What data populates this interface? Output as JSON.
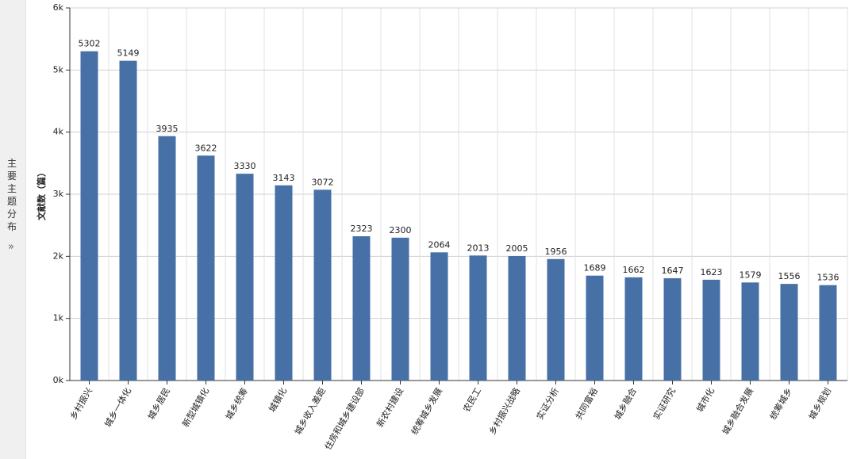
{
  "sidebar": {
    "title": "主要主题分布",
    "toggle": "»"
  },
  "chart_data": {
    "type": "bar",
    "y_label": "文献数（篇）",
    "categories": [
      "乡村振兴",
      "城乡一体化",
      "城乡居民",
      "新型城镇化",
      "城乡统筹",
      "城镇化",
      "城乡收入差距",
      "住房和城乡建设部",
      "新农村建设",
      "统筹城乡发展",
      "农民工",
      "乡村振兴战略",
      "实证分析",
      "共同富裕",
      "城乡融合",
      "实证研究",
      "城市化",
      "城乡融合发展",
      "统筹城乡",
      "城乡规划"
    ],
    "values": [
      5302,
      5149,
      3935,
      3622,
      3330,
      3143,
      3072,
      2323,
      2300,
      2064,
      2013,
      2005,
      1956,
      1689,
      1662,
      1647,
      1623,
      1579,
      1556,
      1536
    ],
    "color": "#4670a6",
    "ylim": [
      0,
      6000
    ],
    "yticks": [
      {
        "value": 0,
        "label": "0k"
      },
      {
        "value": 1000,
        "label": "1k"
      },
      {
        "value": 2000,
        "label": "2k"
      },
      {
        "value": 3000,
        "label": "3k"
      },
      {
        "value": 4000,
        "label": "4k"
      },
      {
        "value": 5000,
        "label": "5k"
      },
      {
        "value": 6000,
        "label": "6k"
      }
    ],
    "grid": true
  }
}
